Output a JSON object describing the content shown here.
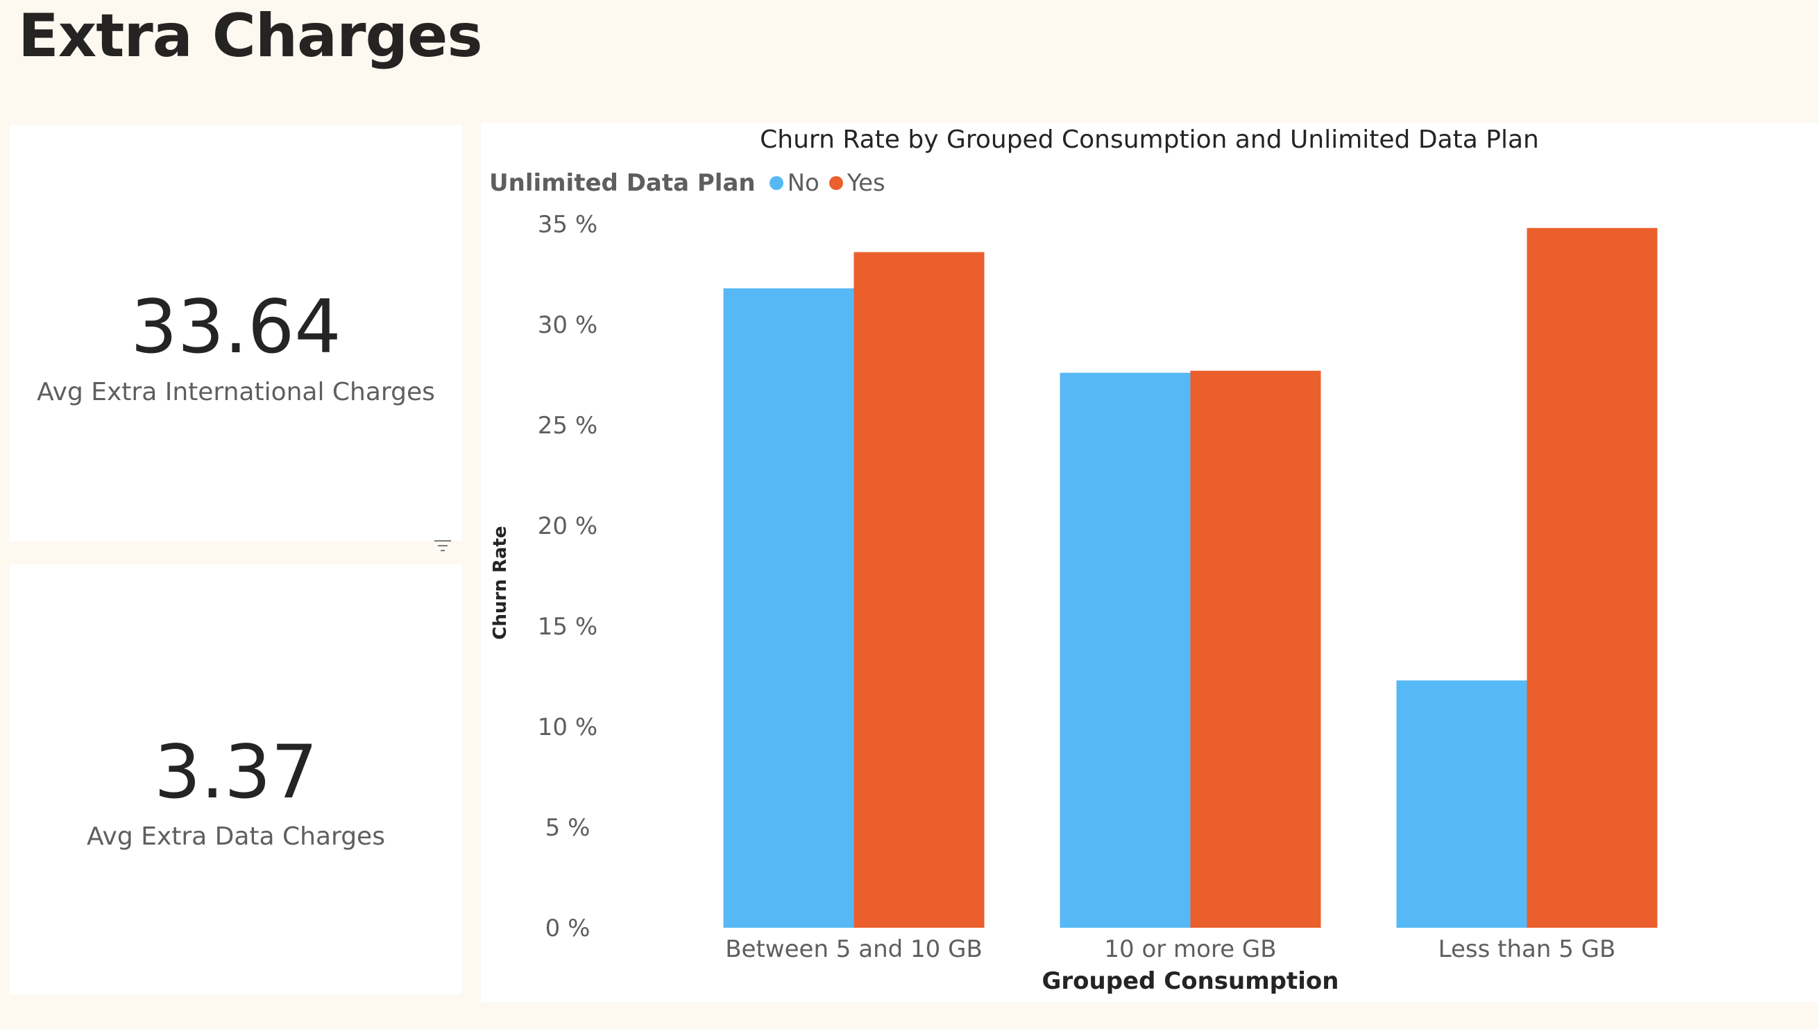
{
  "page": {
    "title": "Extra Charges"
  },
  "kpis": [
    {
      "value": "33.64",
      "label": "Avg Extra International Charges"
    },
    {
      "value": "3.37",
      "label": "Avg Extra Data Charges"
    }
  ],
  "icons": {
    "filter": "filter-icon"
  },
  "colors": {
    "no": "#56b9f6",
    "yes": "#eb5f2c",
    "background": "#fdf9f1"
  },
  "chart_data": {
    "type": "bar",
    "title": "Churn Rate by Grouped Consumption and Unlimited Data Plan",
    "legend_title": "Unlimited Data Plan",
    "legend_position": "top-left",
    "xlabel": "Grouped Consumption",
    "ylabel": "Churn Rate",
    "categories": [
      "Between 5 and 10 GB",
      "10 or more GB",
      "Less than 5 GB"
    ],
    "series": [
      {
        "name": "No",
        "values": [
          31.8,
          27.6,
          12.3
        ]
      },
      {
        "name": "Yes",
        "values": [
          33.6,
          27.7,
          34.8
        ]
      }
    ],
    "ylim": [
      0,
      35
    ],
    "yticks": [
      0,
      5,
      10,
      15,
      20,
      25,
      30,
      35
    ],
    "ytick_labels": [
      "0 %",
      "5 %",
      "10 %",
      "15 %",
      "20 %",
      "25 %",
      "30 %",
      "35 %"
    ],
    "grid": false
  }
}
